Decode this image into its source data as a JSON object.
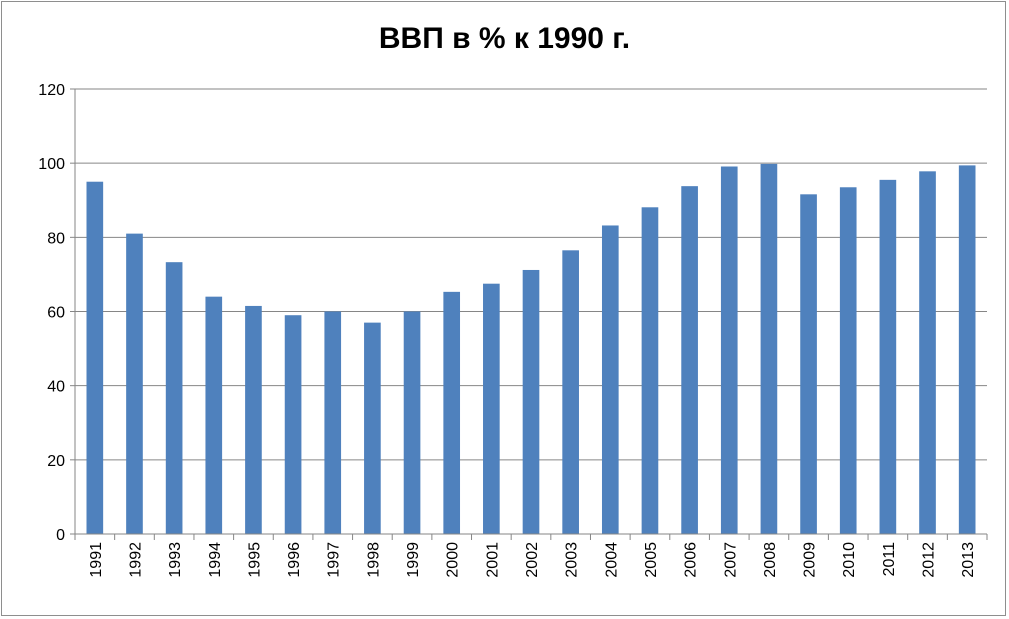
{
  "colors": {
    "bar": "#4f81bd",
    "grid": "#868686",
    "axis": "#868686",
    "text": "#000000",
    "border": "#8e8e8e"
  },
  "chart_data": {
    "type": "bar",
    "title": "ВВП в % к 1990 г.",
    "xlabel": "",
    "ylabel": "",
    "categories": [
      "1991",
      "1992",
      "1993",
      "1994",
      "1995",
      "1996",
      "1997",
      "1998",
      "1999",
      "2000",
      "2001",
      "2002",
      "2003",
      "2004",
      "2005",
      "2006",
      "2007",
      "2008",
      "2009",
      "2010",
      "2011",
      "2012",
      "2013"
    ],
    "values": [
      95,
      81,
      73.3,
      64,
      61.5,
      59,
      60,
      57,
      60,
      65.3,
      67.5,
      71.2,
      76.5,
      83.2,
      88.1,
      93.8,
      99.1,
      99.8,
      91.6,
      93.5,
      95.5,
      97.8,
      99.4
    ],
    "ylim": [
      0,
      120
    ],
    "yticks": [
      "0",
      "20",
      "40",
      "60",
      "80",
      "100",
      "120"
    ],
    "grid": true,
    "legend": "none"
  }
}
